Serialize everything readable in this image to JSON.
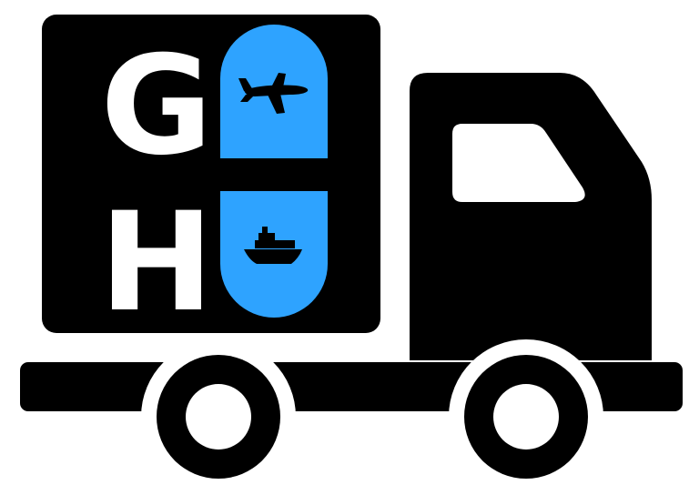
{
  "logo": {
    "letters": {
      "top": "G",
      "bottom": "H"
    },
    "colors": {
      "truck": "#000000",
      "accent": "#2ea3ff",
      "background": "#ffffff",
      "letter": "#ffffff"
    },
    "icons": [
      "delivery-truck-icon",
      "airplane-icon",
      "ship-icon"
    ]
  }
}
